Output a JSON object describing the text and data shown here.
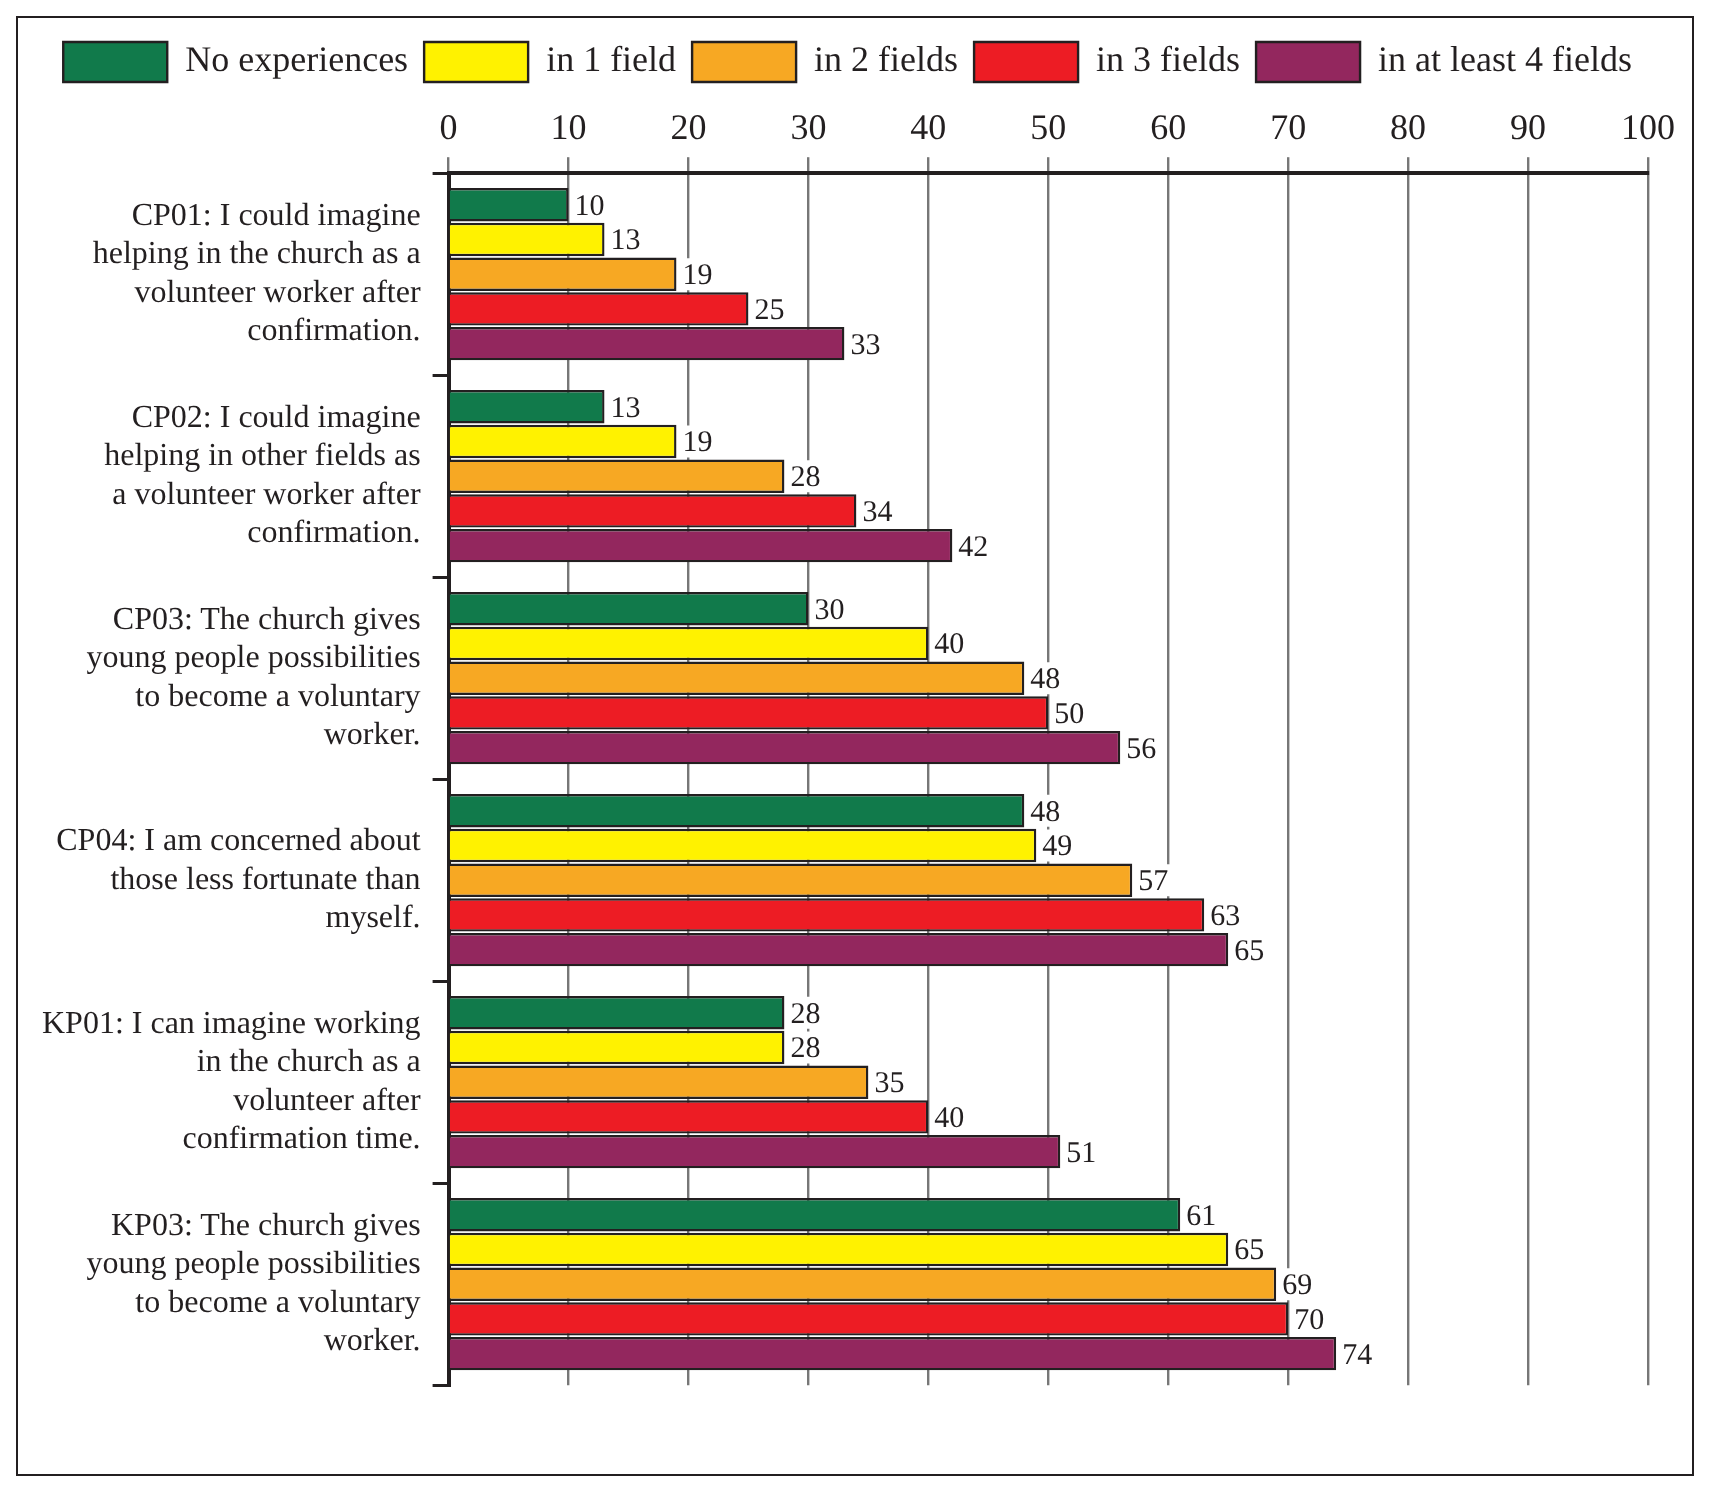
{
  "chart_data": {
    "type": "bar",
    "orientation": "horizontal",
    "categories": [
      "CP01: I could imagine helping in the church as a volunteer worker after confirmation.",
      "CP02: I could imagine helping in other fields as a volunteer worker after confirmation.",
      "CP03: The church gives young people possibilities to become a voluntary worker.",
      "CP04: I am concerned about those less fortunate than myself.",
      "KP01: I can imagine working in the church as a volunteer after confirmation time.",
      "KP03: The church gives young people possibilities to become a voluntary worker."
    ],
    "series": [
      {
        "name": "No experiences",
        "color": "#117a4b",
        "values": [
          10,
          13,
          30,
          48,
          28,
          61
        ]
      },
      {
        "name": "in 1 field",
        "color": "#fff200",
        "values": [
          13,
          19,
          40,
          49,
          28,
          65
        ]
      },
      {
        "name": "in 2 fields",
        "color": "#f7a823",
        "values": [
          19,
          28,
          48,
          57,
          35,
          69
        ]
      },
      {
        "name": "in 3 fields",
        "color": "#ed1c24",
        "values": [
          25,
          34,
          50,
          63,
          40,
          70
        ]
      },
      {
        "name": "in at least 4 fields",
        "color": "#93275e",
        "values": [
          33,
          42,
          56,
          65,
          51,
          74
        ]
      }
    ],
    "xlim": [
      0,
      100
    ],
    "xticks": [
      0,
      10,
      20,
      30,
      40,
      50,
      60,
      70,
      80,
      90,
      100
    ],
    "grid": "x",
    "legend": "top",
    "data_labels": true
  }
}
